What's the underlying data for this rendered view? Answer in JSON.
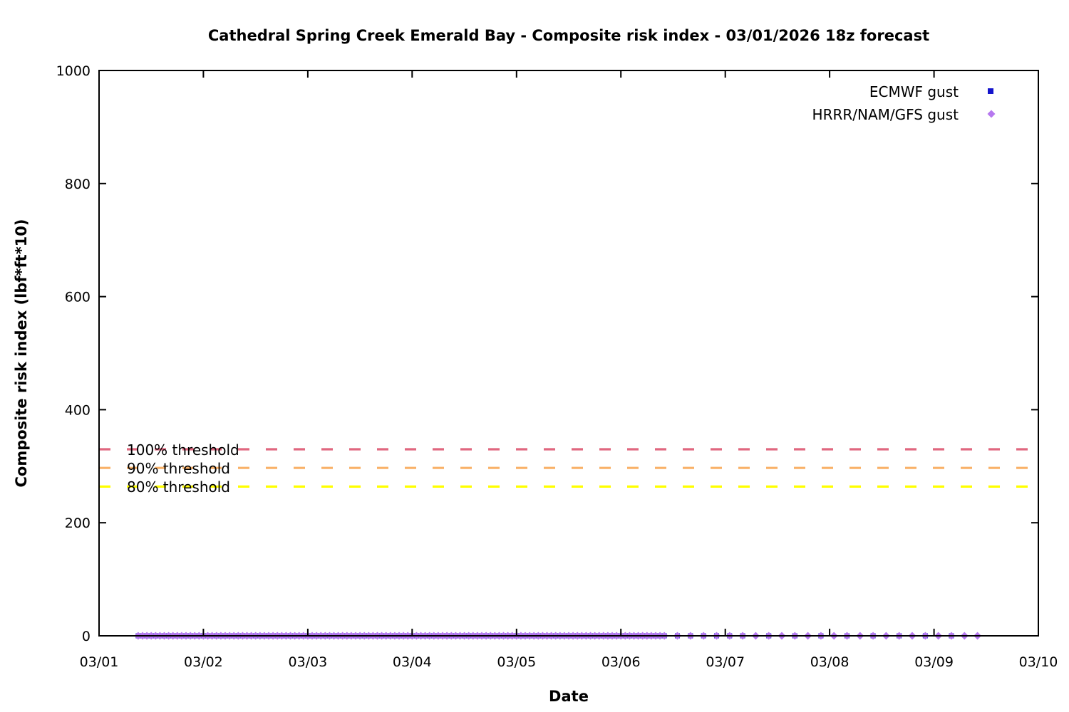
{
  "title": "Cathedral Spring Creek Emerald Bay - Composite risk index - 03/01/2026 18z forecast",
  "axes": {
    "x_label": "Date",
    "y_label": "Composite risk index (lbf*ft*10)",
    "x_tick_labels": [
      "03/01",
      "03/02",
      "03/03",
      "03/04",
      "03/05",
      "03/06",
      "03/07",
      "03/08",
      "03/09",
      "03/10"
    ],
    "y_tick_labels": [
      "0",
      "200",
      "400",
      "600",
      "800",
      "1000"
    ],
    "y_min": 0,
    "y_max": 1000,
    "x_span_days": 9
  },
  "legend": {
    "position": "top-right-inside",
    "items": [
      {
        "label": "ECMWF gust",
        "marker": "square",
        "color": "#1414cc"
      },
      {
        "label": "HRRR/NAM/GFS gust",
        "marker": "diamond",
        "color": "#b678ef"
      }
    ]
  },
  "thresholds": [
    {
      "label": "100% threshold",
      "value": 330,
      "color": "#e0677f"
    },
    {
      "label": "90% threshold",
      "value": 297,
      "color": "#f9b168"
    },
    {
      "label": "80% threshold",
      "value": 264,
      "color": "#ffff00"
    }
  ],
  "chart_data": {
    "type": "scatter",
    "title": "Cathedral Spring Creek Emerald Bay - Composite risk index - 03/01/2026 18z forecast",
    "xlabel": "Date",
    "ylabel": "Composite risk index (lbf*ft*10)",
    "xlim_dates": [
      "03/01",
      "03/10"
    ],
    "ylim": [
      0,
      1000
    ],
    "grid": false,
    "legend_position": "top-right-inside",
    "x_unit": "days since 03/01 00:00",
    "note": "All plotted gust composite-risk values are 0 for the whole forecast period",
    "series": [
      {
        "name": "ECMWF gust",
        "marker": "square",
        "color": "#1414cc",
        "y_constant": 0,
        "time_segments": [
          {
            "start_day": 0.375,
            "end_day": 5.41667,
            "step_day": 0.0416667,
            "cadence": "hourly"
          },
          {
            "start_day": 5.54167,
            "end_day": 6.16667,
            "step_day": 0.125,
            "cadence": "3-hourly"
          },
          {
            "start_day": 6.41667,
            "end_day": 8.16667,
            "step_day": 0.25,
            "cadence": "6-hourly"
          }
        ]
      },
      {
        "name": "HRRR/NAM/GFS gust",
        "marker": "diamond",
        "color": "#b678ef",
        "y_constant": 0,
        "time_segments": [
          {
            "start_day": 0.375,
            "end_day": 5.41667,
            "step_day": 0.0416667,
            "cadence": "hourly"
          },
          {
            "start_day": 5.54167,
            "end_day": 8.41667,
            "step_day": 0.125,
            "cadence": "3-hourly"
          }
        ]
      }
    ],
    "threshold_lines": [
      {
        "label": "100% threshold",
        "y": 330,
        "color": "#e0677f",
        "style": "dashed"
      },
      {
        "label": "90% threshold",
        "y": 297,
        "color": "#f9b168",
        "style": "dashed"
      },
      {
        "label": "80% threshold",
        "y": 264,
        "color": "#ffff00",
        "style": "dashed"
      }
    ]
  }
}
